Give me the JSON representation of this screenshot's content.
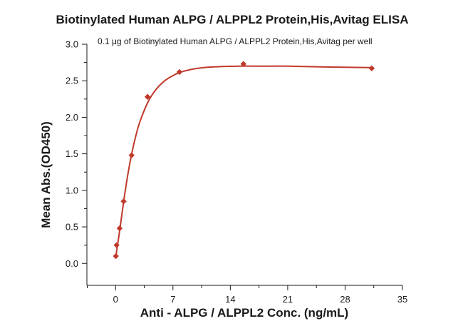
{
  "chart_data": {
    "type": "scatter",
    "title": "Biotinylated Human ALPG / ALPPL2 Protein,His,Avitag ELISA",
    "subtitle": "0.1 μg of Biotinylated Human ALPG / ALPPL2 Protein,His,Avitag per well",
    "xlabel": "Anti - ALPG / ALPPL2 Conc. (ng/mL)",
    "ylabel": "Mean Abs.(OD450)",
    "xlim": [
      -3.5,
      35
    ],
    "ylim": [
      -0.3,
      3.0
    ],
    "xticks": [
      "0",
      "7",
      "14",
      "21",
      "28",
      "35"
    ],
    "yticks": [
      "0.0",
      "0.5",
      "1.0",
      "1.5",
      "2.0",
      "2.5",
      "3.0"
    ],
    "grid": false,
    "series": [
      {
        "color": "#c0392b",
        "points": [
          {
            "x": 0.03,
            "y": 0.1
          },
          {
            "x": 0.12,
            "y": 0.25
          },
          {
            "x": 0.49,
            "y": 0.48
          },
          {
            "x": 0.98,
            "y": 0.85
          },
          {
            "x": 1.95,
            "y": 1.48
          },
          {
            "x": 3.9,
            "y": 2.28
          },
          {
            "x": 7.8,
            "y": 2.62
          },
          {
            "x": 15.6,
            "y": 2.73
          },
          {
            "x": 31.25,
            "y": 2.67
          }
        ],
        "fit_curve": {
          "type": "4PL",
          "description": "fitted sigmoidal curve through points",
          "points": [
            {
              "x": 0.0,
              "y": 0.07
            },
            {
              "x": 0.5,
              "y": 0.45
            },
            {
              "x": 1.0,
              "y": 0.86
            },
            {
              "x": 1.5,
              "y": 1.22
            },
            {
              "x": 2.0,
              "y": 1.52
            },
            {
              "x": 2.5,
              "y": 1.76
            },
            {
              "x": 3.0,
              "y": 1.95
            },
            {
              "x": 4.0,
              "y": 2.22
            },
            {
              "x": 5.0,
              "y": 2.39
            },
            {
              "x": 6.0,
              "y": 2.5
            },
            {
              "x": 7.0,
              "y": 2.57
            },
            {
              "x": 8.0,
              "y": 2.62
            },
            {
              "x": 10.0,
              "y": 2.67
            },
            {
              "x": 12.0,
              "y": 2.69
            },
            {
              "x": 15.0,
              "y": 2.7
            },
            {
              "x": 18.0,
              "y": 2.7
            },
            {
              "x": 21.0,
              "y": 2.7
            },
            {
              "x": 25.0,
              "y": 2.69
            },
            {
              "x": 28.0,
              "y": 2.685
            },
            {
              "x": 31.25,
              "y": 2.68
            }
          ]
        }
      }
    ]
  }
}
